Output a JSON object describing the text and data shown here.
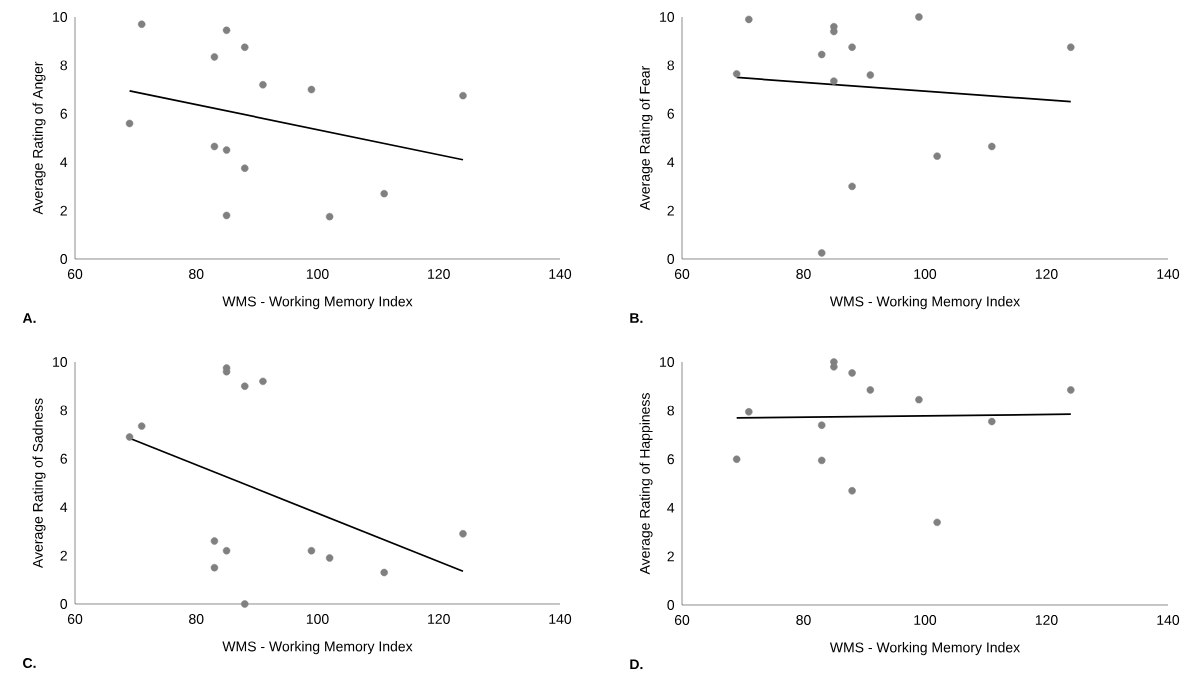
{
  "chart_data": [
    {
      "type": "scatter",
      "xlabel": "WMS - Working Memory Index",
      "ylabel": "Average Rating of Anger",
      "annotations": [
        "A."
      ],
      "xlim": [
        60,
        140
      ],
      "xticks": [
        60,
        80,
        100,
        120,
        140
      ],
      "ylim": [
        0,
        10
      ],
      "yticks": [
        0,
        2,
        4,
        6,
        8,
        10
      ],
      "series": [
        {
          "marker": "circle",
          "color": "#808080",
          "x": [
            71,
            85,
            88,
            83,
            91,
            99,
            124,
            69,
            83,
            85,
            88,
            111,
            85,
            102
          ],
          "values": [
            9.7,
            9.45,
            8.75,
            8.35,
            7.2,
            7.0,
            6.75,
            5.6,
            4.65,
            4.5,
            3.75,
            2.7,
            1.8,
            1.75
          ]
        },
        {
          "type": "line",
          "color": "#000000",
          "x": [
            69,
            124
          ],
          "values": [
            6.95,
            4.1
          ]
        }
      ]
    },
    {
      "type": "scatter",
      "xlabel": "WMS - Working Memory Index",
      "ylabel": "Average Rating of Fear",
      "annotations": [
        "B."
      ],
      "xlim": [
        60,
        140
      ],
      "xticks": [
        60,
        80,
        100,
        120,
        140
      ],
      "ylim": [
        0,
        10
      ],
      "yticks": [
        0,
        2,
        4,
        6,
        8,
        10
      ],
      "series": [
        {
          "marker": "circle",
          "color": "#808080",
          "x": [
            71,
            99,
            85,
            85,
            88,
            124,
            83,
            69,
            91,
            85,
            111,
            102,
            88,
            83
          ],
          "values": [
            9.9,
            10.0,
            9.6,
            9.4,
            8.75,
            8.75,
            8.45,
            7.65,
            7.6,
            7.35,
            4.65,
            4.25,
            3.0,
            0.25
          ]
        },
        {
          "type": "line",
          "color": "#000000",
          "x": [
            69,
            124
          ],
          "values": [
            7.5,
            6.5
          ]
        }
      ]
    },
    {
      "type": "scatter",
      "xlabel": "WMS - Working Memory Index",
      "ylabel": "Average Rating of Sadness",
      "annotations": [
        "C."
      ],
      "xlim": [
        60,
        140
      ],
      "xticks": [
        60,
        80,
        100,
        120,
        140
      ],
      "ylim": [
        0,
        10
      ],
      "yticks": [
        0,
        2,
        4,
        6,
        8,
        10
      ],
      "series": [
        {
          "marker": "circle",
          "color": "#808080",
          "x": [
            85,
            85,
            91,
            88,
            71,
            69,
            124,
            83,
            85,
            99,
            102,
            83,
            111,
            88
          ],
          "values": [
            9.75,
            9.6,
            9.2,
            9.0,
            7.35,
            6.9,
            2.9,
            2.6,
            2.2,
            2.2,
            1.9,
            1.5,
            1.3,
            0
          ]
        },
        {
          "type": "line",
          "color": "#000000",
          "x": [
            69,
            124
          ],
          "values": [
            6.85,
            1.35
          ]
        }
      ]
    },
    {
      "type": "scatter",
      "xlabel": "WMS - Working Memory Index",
      "ylabel": "Average Rating of Happiness",
      "annotations": [
        "D."
      ],
      "xlim": [
        60,
        140
      ],
      "xticks": [
        60,
        80,
        100,
        120,
        140
      ],
      "ylim": [
        0,
        10
      ],
      "yticks": [
        0,
        2,
        4,
        6,
        8,
        10
      ],
      "series": [
        {
          "marker": "circle",
          "color": "#808080",
          "x": [
            85,
            85,
            88,
            91,
            124,
            99,
            71,
            111,
            83,
            69,
            83,
            88,
            102
          ],
          "values": [
            10.0,
            9.8,
            9.55,
            8.85,
            8.85,
            8.45,
            7.95,
            7.55,
            7.4,
            6.0,
            5.95,
            4.7,
            3.4
          ]
        },
        {
          "type": "line",
          "color": "#000000",
          "x": [
            69,
            124
          ],
          "values": [
            7.7,
            7.85
          ]
        }
      ]
    }
  ]
}
